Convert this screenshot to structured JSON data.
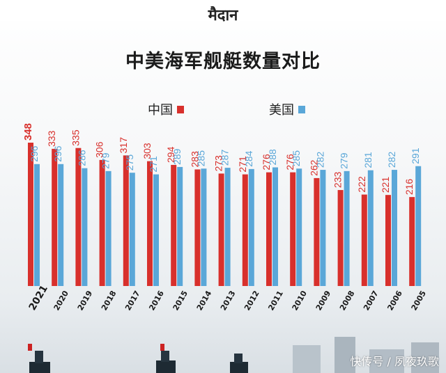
{
  "header": {
    "logo_text": "मैदान"
  },
  "chart_data": {
    "type": "bar",
    "title": "中美海军舰艇数量对比",
    "categories": [
      "2021",
      "2020",
      "2019",
      "2018",
      "2017",
      "2016",
      "2015",
      "2014",
      "2013",
      "2012",
      "2011",
      "2010",
      "2009",
      "2008",
      "2007",
      "2006",
      "2005"
    ],
    "series": [
      {
        "name": "中国",
        "color": "#d8302c",
        "values": [
          348,
          333,
          335,
          306,
          317,
          303,
          294,
          283,
          273,
          271,
          276,
          276,
          262,
          233,
          222,
          221,
          216
        ]
      },
      {
        "name": "美国",
        "color": "#5aa7d8",
        "values": [
          296,
          296,
          286,
          279,
          275,
          271,
          289,
          285,
          287,
          284,
          288,
          285,
          282,
          279,
          281,
          282,
          291
        ]
      }
    ],
    "ylim": [
      0,
      348
    ],
    "grid": false,
    "legend_position": "top"
  },
  "legend": [
    {
      "label": "中国",
      "color": "#d8302c"
    },
    {
      "label": "美国",
      "color": "#5aa7d8"
    }
  ],
  "watermark": "快传号 / 夙夜玖歌"
}
